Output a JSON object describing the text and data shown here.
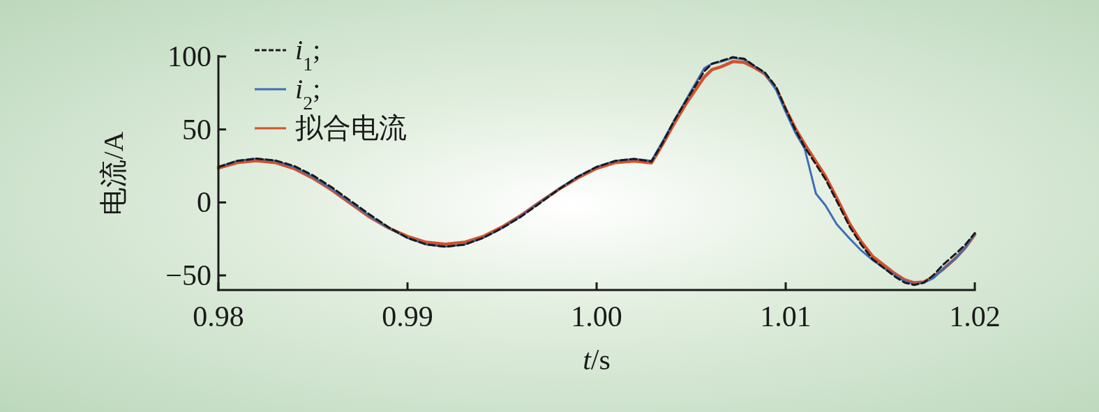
{
  "chart_data": {
    "type": "line",
    "xlabel": "*t*/s",
    "ylabel": "电流/A",
    "legend": "top left",
    "grid": false,
    "xlim": [
      0.98,
      1.02
    ],
    "xticks": [
      0.98,
      0.99,
      {
        "value": 1.0,
        "label": "1.00"
      },
      1.01,
      1.02
    ],
    "ylim": [
      -60,
      100
    ],
    "yticks": [
      100,
      50,
      0,
      {
        "value": -50,
        "label": "−50"
      }
    ],
    "x": [
      0.98,
      0.981,
      0.982,
      0.983,
      0.984,
      0.985,
      0.986,
      0.987,
      0.988,
      0.989,
      0.99,
      0.991,
      0.992,
      0.993,
      0.994,
      0.995,
      0.996,
      0.997,
      0.998,
      0.999,
      1.0,
      1.001,
      1.002,
      1.0029,
      1.0035,
      1.0041,
      1.0048,
      1.0057,
      1.0061,
      1.0066,
      1.0072,
      1.0078,
      1.0084,
      1.0089,
      1.0095,
      1.01,
      1.0105,
      1.011,
      1.0116,
      1.0121,
      1.0127,
      1.0134,
      1.014,
      1.0146,
      1.0152,
      1.0158,
      1.0163,
      1.0168,
      1.0173,
      1.0178,
      1.0183,
      1.019,
      1.0195,
      1.02
    ],
    "series": [
      {
        "name": "*i*$_{1}$;",
        "color": "#1a1a1a",
        "line_style": "dashed",
        "values": [
          24.3,
          28.5,
          30,
          28.8,
          25,
          18.5,
          10.3,
          1,
          -8.3,
          -17,
          -24.3,
          -28.8,
          -30.3,
          -29,
          -24.3,
          -17.6,
          -9.8,
          -0.5,
          9,
          17.6,
          24.3,
          28.5,
          29.8,
          28,
          41,
          56,
          71,
          90,
          95,
          97,
          99.5,
          98.5,
          93,
          89,
          79,
          64,
          50,
          38,
          26,
          16,
          1,
          -17,
          -29,
          -39,
          -45,
          -51,
          -55,
          -56.5,
          -55,
          -50,
          -43,
          -35,
          -29,
          -21
        ]
      },
      {
        "name": "*i*$_{2}$;",
        "color": "#3d6fb6",
        "line_style": "solid",
        "values": [
          24.3,
          28.5,
          30,
          28.5,
          24.3,
          17.6,
          9.3,
          0,
          -9.3,
          -17.6,
          -24.3,
          -28.8,
          -30.3,
          -28.8,
          -24.3,
          -17.6,
          -9.3,
          0,
          9.3,
          17.6,
          24.3,
          28.5,
          29.8,
          28.5,
          42,
          56,
          72,
          92,
          95,
          96.5,
          99,
          98,
          93,
          88.5,
          77,
          62,
          48,
          37,
          6,
          -2,
          -15,
          -25,
          -33,
          -39.5,
          -45,
          -50,
          -54,
          -56,
          -55,
          -52,
          -46,
          -38,
          -31,
          -21.5
        ]
      },
      {
        "name": "拟合电流",
        "color": "#d4502f",
        "line_style": "solid",
        "values": [
          23.5,
          27.3,
          28.6,
          27.3,
          23.2,
          16.6,
          8.5,
          -0.8,
          -10,
          -17.5,
          -23.3,
          -27.3,
          -28.6,
          -27.3,
          -23.3,
          -16.8,
          -8.8,
          0.2,
          9,
          16.8,
          23.3,
          27.3,
          28.4,
          27,
          40,
          54,
          69,
          86,
          91,
          93,
          96.5,
          96,
          92,
          88,
          78,
          64,
          51,
          40,
          28,
          18,
          3,
          -15,
          -27,
          -37,
          -43,
          -49,
          -53,
          -55,
          -54.5,
          -51,
          -46,
          -38,
          -31,
          -22
        ]
      }
    ]
  }
}
